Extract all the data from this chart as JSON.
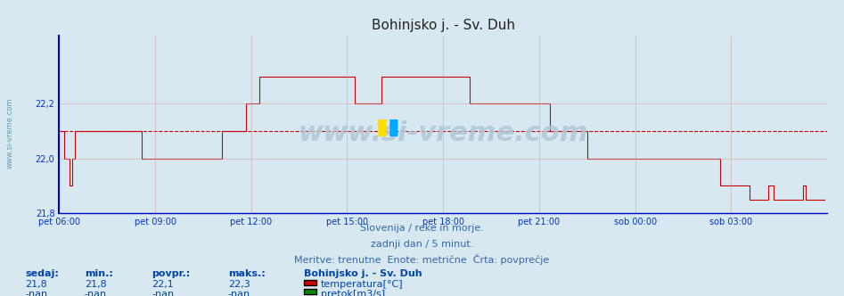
{
  "title": "Bohinjsko j. - Sv. Duh",
  "bg_color": "#d8e8f0",
  "plot_bg_color": "#d8e8f0",
  "line_color": "#cc0000",
  "avg_line_color": "#cc0000",
  "avg_value": 22.1,
  "ylim": [
    21.8,
    22.45
  ],
  "yticks": [
    21.8,
    22.0,
    22.2
  ],
  "xlabel": "",
  "ylabel": "",
  "grid_color": "#cc9999",
  "grid_alpha": 0.7,
  "xmin": 0,
  "xmax": 288,
  "subtitle1": "Slovenija / reke in morje.",
  "subtitle2": "zadnji dan / 5 minut.",
  "subtitle3": "Meritve: trenutne  Enote: metrične  Črta: povprečje",
  "watermark": "www.si-vreme.com",
  "legend_title": "Bohinjsko j. - Sv. Duh",
  "legend_items": [
    "temperatura[°C]",
    "pretok[m3/s]"
  ],
  "legend_colors": [
    "#cc0000",
    "#008800"
  ],
  "table_headers": [
    "sedaj:",
    "min.:",
    "povpr.:",
    "maks.:"
  ],
  "table_row1": [
    "21,8",
    "21,8",
    "22,1",
    "22,3"
  ],
  "table_row2": [
    "-nan",
    "-nan",
    "-nan",
    "-nan"
  ],
  "xtick_labels": [
    "pet 06:00",
    "pet 09:00",
    "pet 12:00",
    "pet 15:00",
    "pet 18:00",
    "pet 21:00",
    "sob 00:00",
    "sob 03:00"
  ],
  "xtick_positions": [
    0,
    36,
    72,
    108,
    144,
    180,
    216,
    252
  ],
  "temp_data": [
    [
      0,
      22.1
    ],
    [
      1,
      22.1
    ],
    [
      2,
      22.0
    ],
    [
      3,
      22.0
    ],
    [
      4,
      21.9
    ],
    [
      5,
      22.0
    ],
    [
      6,
      22.1
    ],
    [
      7,
      22.1
    ],
    [
      8,
      22.1
    ],
    [
      9,
      22.1
    ],
    [
      10,
      22.1
    ],
    [
      11,
      22.1
    ],
    [
      12,
      22.1
    ],
    [
      13,
      22.1
    ],
    [
      14,
      22.1
    ],
    [
      15,
      22.1
    ],
    [
      16,
      22.1
    ],
    [
      17,
      22.1
    ],
    [
      18,
      22.1
    ],
    [
      19,
      22.1
    ],
    [
      20,
      22.1
    ],
    [
      21,
      22.1
    ],
    [
      22,
      22.1
    ],
    [
      23,
      22.1
    ],
    [
      24,
      22.1
    ],
    [
      25,
      22.1
    ],
    [
      26,
      22.1
    ],
    [
      27,
      22.1
    ],
    [
      28,
      22.1
    ],
    [
      29,
      22.1
    ],
    [
      30,
      22.1
    ],
    [
      31,
      22.0
    ],
    [
      32,
      22.0
    ],
    [
      33,
      22.0
    ],
    [
      34,
      22.0
    ],
    [
      35,
      22.0
    ],
    [
      36,
      22.0
    ],
    [
      37,
      22.0
    ],
    [
      38,
      22.0
    ],
    [
      39,
      22.0
    ],
    [
      40,
      22.0
    ],
    [
      41,
      22.0
    ],
    [
      42,
      22.0
    ],
    [
      43,
      22.0
    ],
    [
      44,
      22.0
    ],
    [
      45,
      22.0
    ],
    [
      46,
      22.0
    ],
    [
      47,
      22.0
    ],
    [
      48,
      22.0
    ],
    [
      49,
      22.0
    ],
    [
      50,
      22.0
    ],
    [
      51,
      22.0
    ],
    [
      52,
      22.0
    ],
    [
      53,
      22.0
    ],
    [
      54,
      22.0
    ],
    [
      55,
      22.0
    ],
    [
      56,
      22.0
    ],
    [
      57,
      22.0
    ],
    [
      58,
      22.0
    ],
    [
      59,
      22.0
    ],
    [
      60,
      22.0
    ],
    [
      61,
      22.1
    ],
    [
      62,
      22.1
    ],
    [
      63,
      22.1
    ],
    [
      64,
      22.1
    ],
    [
      65,
      22.1
    ],
    [
      66,
      22.1
    ],
    [
      67,
      22.1
    ],
    [
      68,
      22.1
    ],
    [
      69,
      22.1
    ],
    [
      70,
      22.2
    ],
    [
      71,
      22.2
    ],
    [
      72,
      22.2
    ],
    [
      73,
      22.2
    ],
    [
      74,
      22.2
    ],
    [
      75,
      22.3
    ],
    [
      76,
      22.3
    ],
    [
      77,
      22.3
    ],
    [
      78,
      22.3
    ],
    [
      79,
      22.3
    ],
    [
      80,
      22.3
    ],
    [
      81,
      22.3
    ],
    [
      82,
      22.3
    ],
    [
      83,
      22.3
    ],
    [
      84,
      22.3
    ],
    [
      85,
      22.3
    ],
    [
      86,
      22.3
    ],
    [
      87,
      22.3
    ],
    [
      88,
      22.3
    ],
    [
      89,
      22.3
    ],
    [
      90,
      22.3
    ],
    [
      91,
      22.3
    ],
    [
      92,
      22.3
    ],
    [
      93,
      22.3
    ],
    [
      94,
      22.3
    ],
    [
      95,
      22.3
    ],
    [
      96,
      22.3
    ],
    [
      97,
      22.3
    ],
    [
      98,
      22.3
    ],
    [
      99,
      22.3
    ],
    [
      100,
      22.3
    ],
    [
      101,
      22.3
    ],
    [
      102,
      22.3
    ],
    [
      103,
      22.3
    ],
    [
      104,
      22.3
    ],
    [
      105,
      22.3
    ],
    [
      106,
      22.3
    ],
    [
      107,
      22.3
    ],
    [
      108,
      22.3
    ],
    [
      109,
      22.3
    ],
    [
      110,
      22.3
    ],
    [
      111,
      22.2
    ],
    [
      112,
      22.2
    ],
    [
      113,
      22.2
    ],
    [
      114,
      22.2
    ],
    [
      115,
      22.2
    ],
    [
      116,
      22.2
    ],
    [
      117,
      22.2
    ],
    [
      118,
      22.2
    ],
    [
      119,
      22.2
    ],
    [
      120,
      22.2
    ],
    [
      121,
      22.3
    ],
    [
      122,
      22.3
    ],
    [
      123,
      22.3
    ],
    [
      124,
      22.3
    ],
    [
      125,
      22.3
    ],
    [
      126,
      22.3
    ],
    [
      127,
      22.3
    ],
    [
      128,
      22.3
    ],
    [
      129,
      22.3
    ],
    [
      130,
      22.3
    ],
    [
      131,
      22.3
    ],
    [
      132,
      22.3
    ],
    [
      133,
      22.3
    ],
    [
      134,
      22.3
    ],
    [
      135,
      22.3
    ],
    [
      136,
      22.3
    ],
    [
      137,
      22.3
    ],
    [
      138,
      22.3
    ],
    [
      139,
      22.3
    ],
    [
      140,
      22.3
    ],
    [
      141,
      22.3
    ],
    [
      142,
      22.3
    ],
    [
      143,
      22.3
    ],
    [
      144,
      22.3
    ],
    [
      145,
      22.3
    ],
    [
      146,
      22.3
    ],
    [
      147,
      22.3
    ],
    [
      148,
      22.3
    ],
    [
      149,
      22.3
    ],
    [
      150,
      22.3
    ],
    [
      151,
      22.3
    ],
    [
      152,
      22.3
    ],
    [
      153,
      22.3
    ],
    [
      154,
      22.2
    ],
    [
      155,
      22.2
    ],
    [
      156,
      22.2
    ],
    [
      157,
      22.2
    ],
    [
      158,
      22.2
    ],
    [
      159,
      22.2
    ],
    [
      160,
      22.2
    ],
    [
      161,
      22.2
    ],
    [
      162,
      22.2
    ],
    [
      163,
      22.2
    ],
    [
      164,
      22.2
    ],
    [
      165,
      22.2
    ],
    [
      166,
      22.2
    ],
    [
      167,
      22.2
    ],
    [
      168,
      22.2
    ],
    [
      169,
      22.2
    ],
    [
      170,
      22.2
    ],
    [
      171,
      22.2
    ],
    [
      172,
      22.2
    ],
    [
      173,
      22.2
    ],
    [
      174,
      22.2
    ],
    [
      175,
      22.2
    ],
    [
      176,
      22.2
    ],
    [
      177,
      22.2
    ],
    [
      178,
      22.2
    ],
    [
      179,
      22.2
    ],
    [
      180,
      22.2
    ],
    [
      181,
      22.2
    ],
    [
      182,
      22.2
    ],
    [
      183,
      22.2
    ],
    [
      184,
      22.1
    ],
    [
      185,
      22.1
    ],
    [
      186,
      22.1
    ],
    [
      187,
      22.1
    ],
    [
      188,
      22.1
    ],
    [
      189,
      22.1
    ],
    [
      190,
      22.1
    ],
    [
      191,
      22.1
    ],
    [
      192,
      22.1
    ],
    [
      193,
      22.1
    ],
    [
      194,
      22.1
    ],
    [
      195,
      22.1
    ],
    [
      196,
      22.1
    ],
    [
      197,
      22.1
    ],
    [
      198,
      22.0
    ],
    [
      199,
      22.0
    ],
    [
      200,
      22.0
    ],
    [
      201,
      22.0
    ],
    [
      202,
      22.0
    ],
    [
      203,
      22.0
    ],
    [
      204,
      22.0
    ],
    [
      205,
      22.0
    ],
    [
      206,
      22.0
    ],
    [
      207,
      22.0
    ],
    [
      208,
      22.0
    ],
    [
      209,
      22.0
    ],
    [
      210,
      22.0
    ],
    [
      211,
      22.0
    ],
    [
      212,
      22.0
    ],
    [
      213,
      22.0
    ],
    [
      214,
      22.0
    ],
    [
      215,
      22.0
    ],
    [
      216,
      22.0
    ],
    [
      217,
      22.0
    ],
    [
      218,
      22.0
    ],
    [
      219,
      22.0
    ],
    [
      220,
      22.0
    ],
    [
      221,
      22.0
    ],
    [
      222,
      22.0
    ],
    [
      223,
      22.0
    ],
    [
      224,
      22.0
    ],
    [
      225,
      22.0
    ],
    [
      226,
      22.0
    ],
    [
      227,
      22.0
    ],
    [
      228,
      22.0
    ],
    [
      229,
      22.0
    ],
    [
      230,
      22.0
    ],
    [
      231,
      22.0
    ],
    [
      232,
      22.0
    ],
    [
      233,
      22.0
    ],
    [
      234,
      22.0
    ],
    [
      235,
      22.0
    ],
    [
      236,
      22.0
    ],
    [
      237,
      22.0
    ],
    [
      238,
      22.0
    ],
    [
      239,
      22.0
    ],
    [
      240,
      22.0
    ],
    [
      241,
      22.0
    ],
    [
      242,
      22.0
    ],
    [
      243,
      22.0
    ],
    [
      244,
      22.0
    ],
    [
      245,
      22.0
    ],
    [
      246,
      22.0
    ],
    [
      247,
      22.0
    ],
    [
      248,
      21.9
    ],
    [
      249,
      21.9
    ],
    [
      250,
      21.9
    ],
    [
      251,
      21.9
    ],
    [
      252,
      21.9
    ],
    [
      253,
      21.9
    ],
    [
      254,
      21.9
    ],
    [
      255,
      21.9
    ],
    [
      256,
      21.9
    ],
    [
      257,
      21.9
    ],
    [
      258,
      21.9
    ],
    [
      259,
      21.85
    ],
    [
      260,
      21.85
    ],
    [
      261,
      21.85
    ],
    [
      262,
      21.85
    ],
    [
      263,
      21.85
    ],
    [
      264,
      21.85
    ],
    [
      265,
      21.85
    ],
    [
      266,
      21.9
    ],
    [
      267,
      21.9
    ],
    [
      268,
      21.85
    ],
    [
      269,
      21.85
    ],
    [
      270,
      21.85
    ],
    [
      271,
      21.85
    ],
    [
      272,
      21.85
    ],
    [
      273,
      21.85
    ],
    [
      274,
      21.85
    ],
    [
      275,
      21.85
    ],
    [
      276,
      21.85
    ],
    [
      277,
      21.85
    ],
    [
      278,
      21.85
    ],
    [
      279,
      21.9
    ],
    [
      280,
      21.85
    ],
    [
      281,
      21.85
    ],
    [
      282,
      21.85
    ],
    [
      283,
      21.85
    ],
    [
      284,
      21.85
    ],
    [
      285,
      21.85
    ],
    [
      286,
      21.85
    ],
    [
      287,
      21.85
    ]
  ]
}
